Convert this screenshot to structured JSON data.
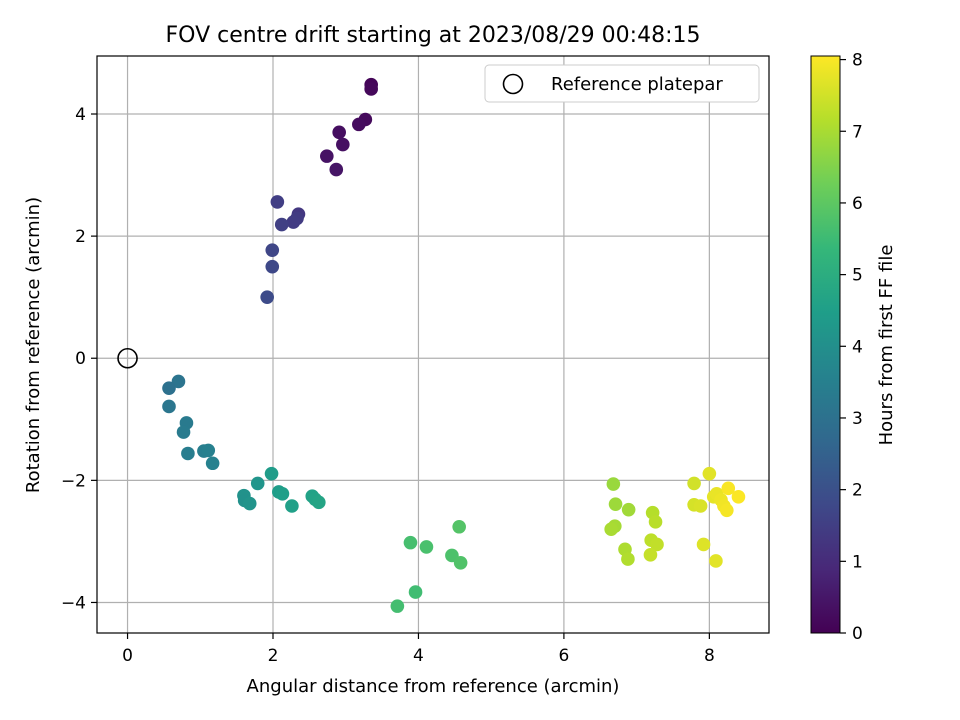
{
  "chart_data": {
    "type": "scatter",
    "title": "FOV centre drift starting at 2023/08/29 00:48:15",
    "xlabel": "Angular distance from reference (arcmin)",
    "ylabel": "Rotation from reference (arcmin)",
    "xlim": [
      -0.42,
      8.82
    ],
    "ylim": [
      -4.5,
      4.95
    ],
    "xticks": [
      0,
      2,
      4,
      6,
      8
    ],
    "xtick_labels": [
      "0",
      "2",
      "4",
      "6",
      "8"
    ],
    "yticks": [
      -4,
      -2,
      0,
      2,
      4
    ],
    "ytick_labels": [
      "−4",
      "−2",
      "0",
      "2",
      "4"
    ],
    "grid": true,
    "legend_position": "upper right",
    "colormap": "viridis",
    "colorbar": {
      "label": "Hours from first FF file",
      "range": [
        0,
        8.05
      ],
      "ticks": [
        0,
        1,
        2,
        3,
        4,
        5,
        6,
        7,
        8
      ],
      "tick_labels": [
        "0",
        "1",
        "2",
        "3",
        "4",
        "5",
        "6",
        "7",
        "8"
      ]
    },
    "reference": {
      "name": "Reference platepar",
      "x": 0,
      "y": 0,
      "marker": "open-circle"
    },
    "series": [
      {
        "points": [
          [
            3.35,
            4.48,
            0.1
          ],
          [
            3.35,
            4.41,
            0.15
          ],
          [
            3.27,
            3.91,
            0.2
          ],
          [
            3.18,
            3.83,
            0.25
          ],
          [
            2.91,
            3.7,
            0.3
          ],
          [
            2.96,
            3.5,
            0.35
          ],
          [
            2.74,
            3.31,
            0.4
          ],
          [
            2.87,
            3.09,
            0.45
          ],
          [
            2.06,
            2.56,
            1.5
          ],
          [
            2.35,
            2.36,
            1.3
          ],
          [
            2.33,
            2.29,
            1.4
          ],
          [
            2.28,
            2.23,
            1.45
          ],
          [
            2.12,
            2.19,
            1.55
          ],
          [
            1.99,
            1.77,
            1.7
          ],
          [
            1.99,
            1.5,
            1.75
          ],
          [
            1.92,
            1.0,
            1.85
          ],
          [
            0.7,
            -0.38,
            3.1
          ],
          [
            0.57,
            -0.49,
            3.0
          ],
          [
            0.57,
            -0.79,
            3.15
          ],
          [
            0.81,
            -1.06,
            3.3
          ],
          [
            0.77,
            -1.21,
            3.35
          ],
          [
            0.83,
            -1.56,
            3.4
          ],
          [
            1.05,
            -1.52,
            3.45
          ],
          [
            1.11,
            -1.51,
            3.5
          ],
          [
            1.17,
            -1.72,
            3.55
          ],
          [
            1.98,
            -1.89,
            4.4
          ],
          [
            1.79,
            -2.05,
            4.2
          ],
          [
            2.08,
            -2.19,
            4.45
          ],
          [
            2.13,
            -2.22,
            4.5
          ],
          [
            1.6,
            -2.25,
            4.1
          ],
          [
            1.61,
            -2.33,
            4.05
          ],
          [
            1.68,
            -2.38,
            4.15
          ],
          [
            2.26,
            -2.42,
            4.55
          ],
          [
            2.54,
            -2.26,
            4.6
          ],
          [
            2.58,
            -2.31,
            4.65
          ],
          [
            2.63,
            -2.36,
            4.7
          ],
          [
            3.71,
            -4.06,
            5.6
          ],
          [
            3.96,
            -3.83,
            5.55
          ],
          [
            3.89,
            -3.02,
            5.65
          ],
          [
            4.11,
            -3.09,
            5.7
          ],
          [
            4.46,
            -3.23,
            5.75
          ],
          [
            4.58,
            -3.35,
            5.8
          ],
          [
            4.56,
            -2.76,
            5.85
          ],
          [
            6.68,
            -2.06,
            6.8
          ],
          [
            6.71,
            -2.39,
            6.85
          ],
          [
            6.89,
            -2.48,
            6.9
          ],
          [
            6.7,
            -2.75,
            6.95
          ],
          [
            6.65,
            -2.8,
            7.0
          ],
          [
            6.84,
            -3.13,
            7.05
          ],
          [
            6.88,
            -3.29,
            7.1
          ],
          [
            7.22,
            -2.53,
            7.15
          ],
          [
            7.26,
            -2.68,
            7.2
          ],
          [
            7.2,
            -2.98,
            7.25
          ],
          [
            7.28,
            -3.05,
            7.3
          ],
          [
            7.19,
            -3.22,
            7.35
          ],
          [
            7.79,
            -2.05,
            7.5
          ],
          [
            7.79,
            -2.4,
            7.55
          ],
          [
            7.88,
            -2.42,
            7.6
          ],
          [
            7.92,
            -3.05,
            7.65
          ],
          [
            8.0,
            -1.89,
            7.7
          ],
          [
            8.06,
            -2.27,
            7.75
          ],
          [
            8.1,
            -2.22,
            7.8
          ],
          [
            8.16,
            -2.32,
            7.85
          ],
          [
            8.2,
            -2.42,
            7.9
          ],
          [
            8.24,
            -2.49,
            7.95
          ],
          [
            8.26,
            -2.13,
            8.0
          ],
          [
            8.4,
            -2.27,
            8.02
          ],
          [
            8.09,
            -3.32,
            7.72
          ]
        ]
      }
    ]
  }
}
